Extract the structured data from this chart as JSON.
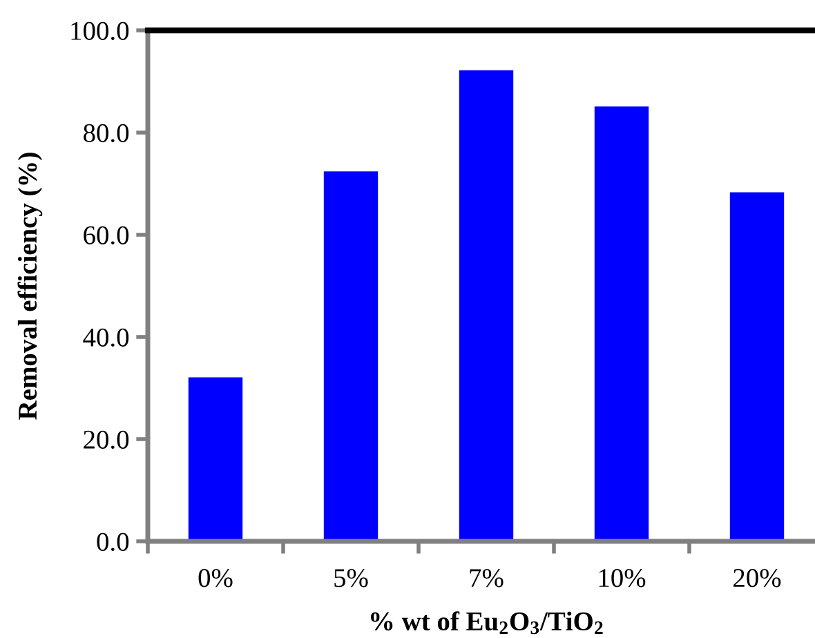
{
  "chart_data": {
    "type": "bar",
    "xlabel": "% wt of Eu$_{2}$O$_{3}$/TiO$_{2}$",
    "ylabel": "Removal efficiency (%)",
    "categories": [
      "0%",
      "5%",
      "7%",
      "10%",
      "20%"
    ],
    "values": [
      32.1,
      72.4,
      92.2,
      85.1,
      68.3
    ],
    "color": "#0000ff",
    "ylim": [
      0,
      100
    ],
    "yticks": [
      {
        "value": 0,
        "label": "0.0"
      },
      {
        "value": 20,
        "label": "20.0"
      },
      {
        "value": 40,
        "label": "40.0"
      },
      {
        "value": 60,
        "label": "60.0"
      },
      {
        "value": 80,
        "label": "80.0"
      },
      {
        "value": 100,
        "label": "100.0"
      }
    ],
    "grid": false,
    "legend": false
  }
}
